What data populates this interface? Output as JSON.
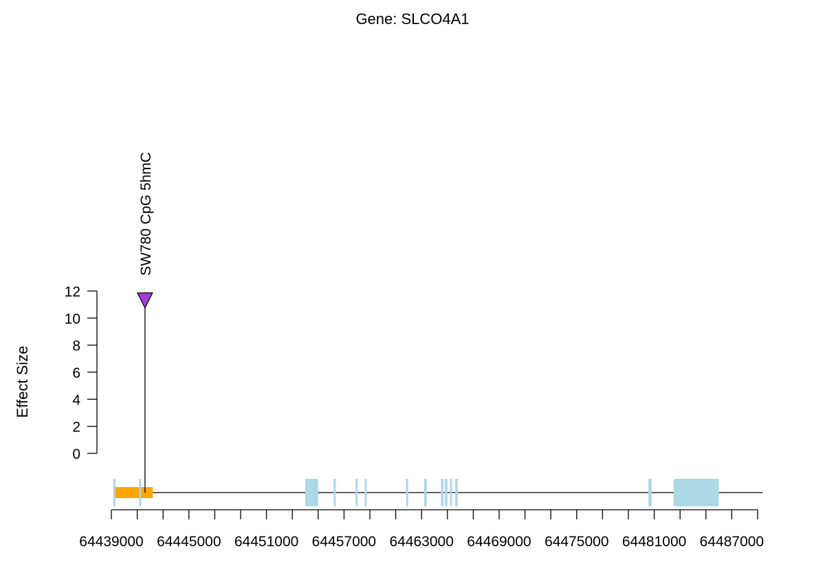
{
  "chart_data": {
    "type": "lollipop",
    "title": "Gene: SLCO4A1",
    "ylabel": "Effect Size",
    "xlabel": "",
    "ylim": [
      0,
      12
    ],
    "y_ticks": [
      0,
      2,
      4,
      6,
      8,
      10,
      12
    ],
    "y_tick_labels": [
      "0",
      "2",
      "4",
      "6",
      "8",
      "10",
      "12"
    ],
    "xlim": [
      64439000,
      64489000
    ],
    "x_ticks": [
      64439000,
      64441000,
      64443000,
      64445000,
      64447000,
      64449000,
      64451000,
      64453000,
      64455000,
      64457000,
      64459000,
      64461000,
      64463000,
      64465000,
      64467000,
      64469000,
      64471000,
      64473000,
      64475000,
      64477000,
      64479000,
      64481000,
      64483000,
      64485000,
      64487000,
      64489000
    ],
    "x_tick_labels": [
      "64439000",
      "64445000",
      "64451000",
      "64457000",
      "64463000",
      "64469000",
      "64475000",
      "64481000",
      "64487000"
    ],
    "x_tick_label_values": [
      64439000,
      64445000,
      64451000,
      64457000,
      64463000,
      64469000,
      64475000,
      64481000,
      64487000
    ],
    "gene": {
      "start": 64439300,
      "end": 64489400,
      "exons": [
        [
          64439150,
          64439200
        ],
        [
          64441150,
          64441250
        ],
        [
          64454000,
          64455000
        ],
        [
          64456200,
          64456300
        ],
        [
          64457900,
          64458050
        ],
        [
          64458600,
          64458750
        ],
        [
          64461800,
          64461950
        ],
        [
          64463200,
          64463400
        ],
        [
          64464500,
          64464700
        ],
        [
          64464800,
          64465000
        ],
        [
          64465200,
          64465350
        ],
        [
          64465600,
          64465800
        ],
        [
          64480550,
          64480800
        ],
        [
          64482500,
          64486000
        ]
      ],
      "utr": [
        [
          64439150,
          64442200
        ]
      ],
      "colors": {
        "exon": "#add8e6",
        "utr": "#ffa500",
        "line": "#000000"
      }
    },
    "points": [
      {
        "x": 64441600,
        "y": 11.3,
        "label": "SW780 CpG 5hmC",
        "color": "#a040d8",
        "shape": "triangle-down"
      }
    ]
  }
}
